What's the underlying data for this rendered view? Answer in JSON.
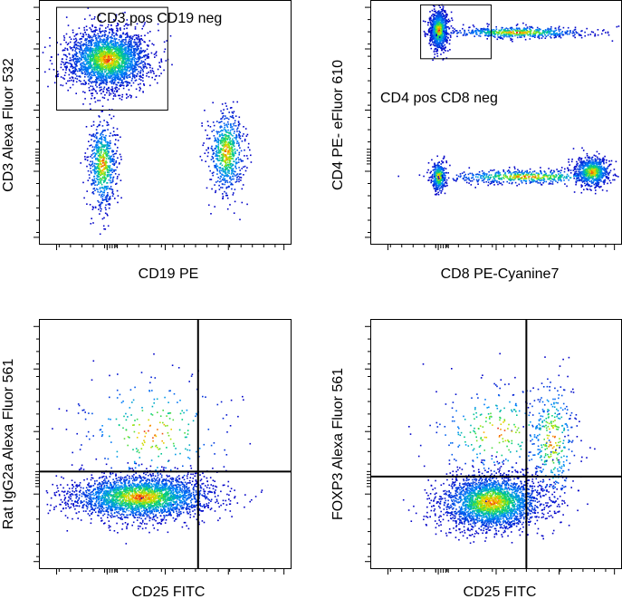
{
  "chart_data": [
    {
      "type": "scatter",
      "xlabel": "CD19 PE",
      "ylabel": "CD3 Alexa Fluor 532",
      "populations": [
        {
          "cx": 0.27,
          "cy": 0.76,
          "sx": 0.08,
          "sy": 0.06,
          "n": 2600
        },
        {
          "cx": 0.25,
          "cy": 0.33,
          "sx": 0.028,
          "sy": 0.09,
          "n": 650
        },
        {
          "cx": 0.74,
          "cy": 0.38,
          "sx": 0.035,
          "sy": 0.085,
          "n": 700
        }
      ],
      "gates": [
        {
          "label": "CD3 pos CD19 neg",
          "x0": 0.07,
          "x1": 0.51,
          "y0": 0.55,
          "y1": 0.97
        }
      ]
    },
    {
      "type": "scatter",
      "xlabel": "CD8 PE-Cyanine7",
      "ylabel": "CD4 PE- eFluor 610",
      "populations": [
        {
          "cx": 0.27,
          "cy": 0.88,
          "sx": 0.018,
          "sy": 0.04,
          "n": 900
        },
        {
          "cx": 0.58,
          "cy": 0.87,
          "sx": 0.14,
          "sy": 0.012,
          "n": 600
        },
        {
          "cx": 0.27,
          "cy": 0.28,
          "sx": 0.015,
          "sy": 0.03,
          "n": 350
        },
        {
          "cx": 0.62,
          "cy": 0.28,
          "sx": 0.17,
          "sy": 0.014,
          "n": 550
        },
        {
          "cx": 0.88,
          "cy": 0.3,
          "sx": 0.035,
          "sy": 0.03,
          "n": 700
        }
      ],
      "gates": [
        {
          "label": "CD4 pos CD8 neg",
          "x0": 0.2,
          "x1": 0.48,
          "y0": 0.76,
          "y1": 0.98
        }
      ]
    },
    {
      "type": "scatter",
      "xlabel": "CD25 FITC",
      "ylabel": "Rat IgG2a Alexa Fluor 561",
      "populations": [
        {
          "cx": 0.4,
          "cy": 0.29,
          "sx": 0.14,
          "sy": 0.045,
          "n": 2800
        },
        {
          "cx": 0.45,
          "cy": 0.55,
          "sx": 0.16,
          "sy": 0.12,
          "n": 250
        }
      ],
      "quadrant": {
        "x": 0.63,
        "y": 0.39
      }
    },
    {
      "type": "scatter",
      "xlabel": "CD25 FITC",
      "ylabel": "FOXP3 Alexa Fluor 561",
      "populations": [
        {
          "cx": 0.48,
          "cy": 0.27,
          "sx": 0.1,
          "sy": 0.055,
          "n": 2600
        },
        {
          "cx": 0.72,
          "cy": 0.52,
          "sx": 0.05,
          "sy": 0.13,
          "n": 350
        },
        {
          "cx": 0.5,
          "cy": 0.55,
          "sx": 0.14,
          "sy": 0.1,
          "n": 250
        }
      ],
      "quadrant": {
        "x": 0.62,
        "y": 0.37
      }
    }
  ]
}
